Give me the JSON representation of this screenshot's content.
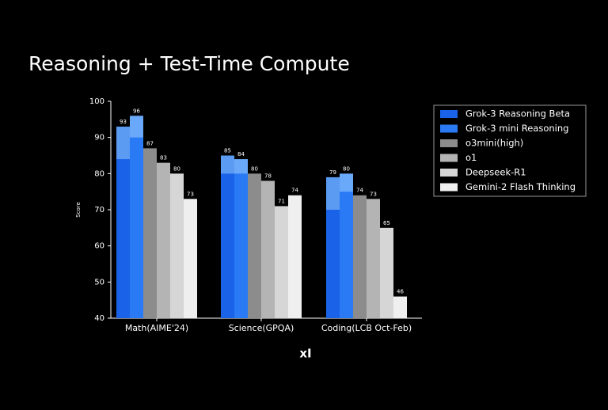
{
  "chart_data": {
    "type": "bar",
    "title": "Reasoning + Test-Time Compute",
    "y_label": "Score",
    "logo": "xI",
    "categories": [
      "Math(AIME'24)",
      "Science(GPQA)",
      "Coding(LCB Oct-Feb)"
    ],
    "ylim": [
      40,
      100
    ],
    "yticks": [
      40,
      50,
      60,
      70,
      80,
      90,
      100
    ],
    "legend": "outside-right",
    "series": [
      {
        "name": "Grok-3 Reasoning Beta",
        "color": "#5b9bf2",
        "base_color": "#1a63e8",
        "values": [
          93,
          85,
          79
        ],
        "base_values": [
          84,
          80,
          70
        ]
      },
      {
        "name": "Grok-3 mini Reasoning",
        "color": "#6aa9fa",
        "base_color": "#2b7af5",
        "values": [
          96,
          84,
          80
        ],
        "base_values": [
          90,
          80,
          75
        ]
      },
      {
        "name": "o3mini(high)",
        "color": "#8c8c8c",
        "values": [
          87,
          80,
          74
        ]
      },
      {
        "name": "o1",
        "color": "#b4b4b4",
        "values": [
          83,
          78,
          73
        ]
      },
      {
        "name": "Deepseek-R1",
        "color": "#d6d6d6",
        "values": [
          80,
          71,
          65
        ]
      },
      {
        "name": "Gemini-2 Flash Thinking",
        "color": "#efefef",
        "values": [
          73,
          74,
          46
        ]
      }
    ]
  }
}
